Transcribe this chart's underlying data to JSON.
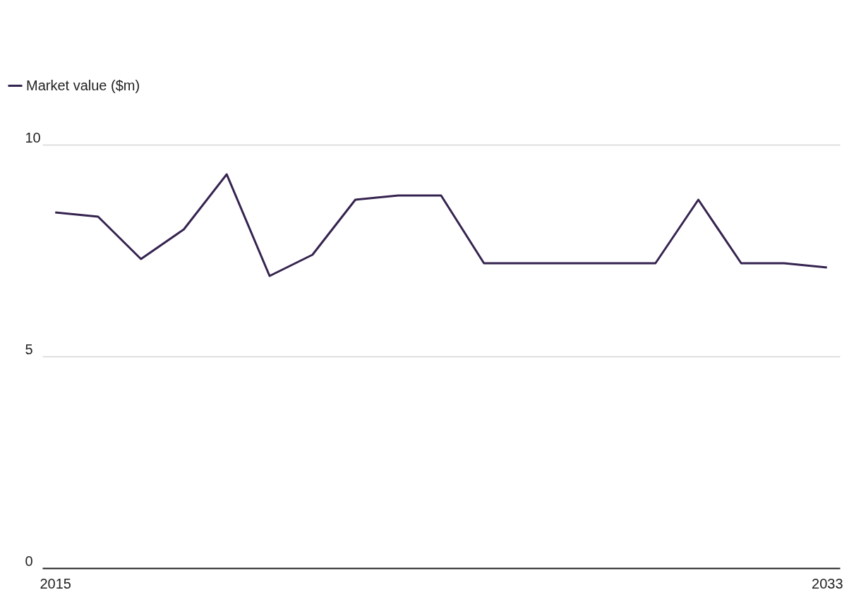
{
  "chart_data": {
    "type": "line",
    "x": [
      2015,
      2016,
      2017,
      2018,
      2019,
      2020,
      2021,
      2022,
      2023,
      2024,
      2025,
      2026,
      2027,
      2028,
      2029,
      2030,
      2031,
      2032,
      2033
    ],
    "series": [
      {
        "name": "Market value ($m)",
        "color": "#35234f",
        "values": [
          8.4,
          8.3,
          7.3,
          8.0,
          9.3,
          6.9,
          7.4,
          8.7,
          8.8,
          8.8,
          7.2,
          7.2,
          7.2,
          7.2,
          7.2,
          8.7,
          7.2,
          7.2,
          7.1
        ]
      }
    ],
    "xlim": [
      2014.7,
      2033.3
    ],
    "xticks": [
      2015,
      2033
    ],
    "ylim": [
      0,
      10
    ],
    "yticks": [
      0,
      5,
      10
    ],
    "grid": "y",
    "legend": "top left",
    "marker": "none",
    "line_style": "solid"
  }
}
